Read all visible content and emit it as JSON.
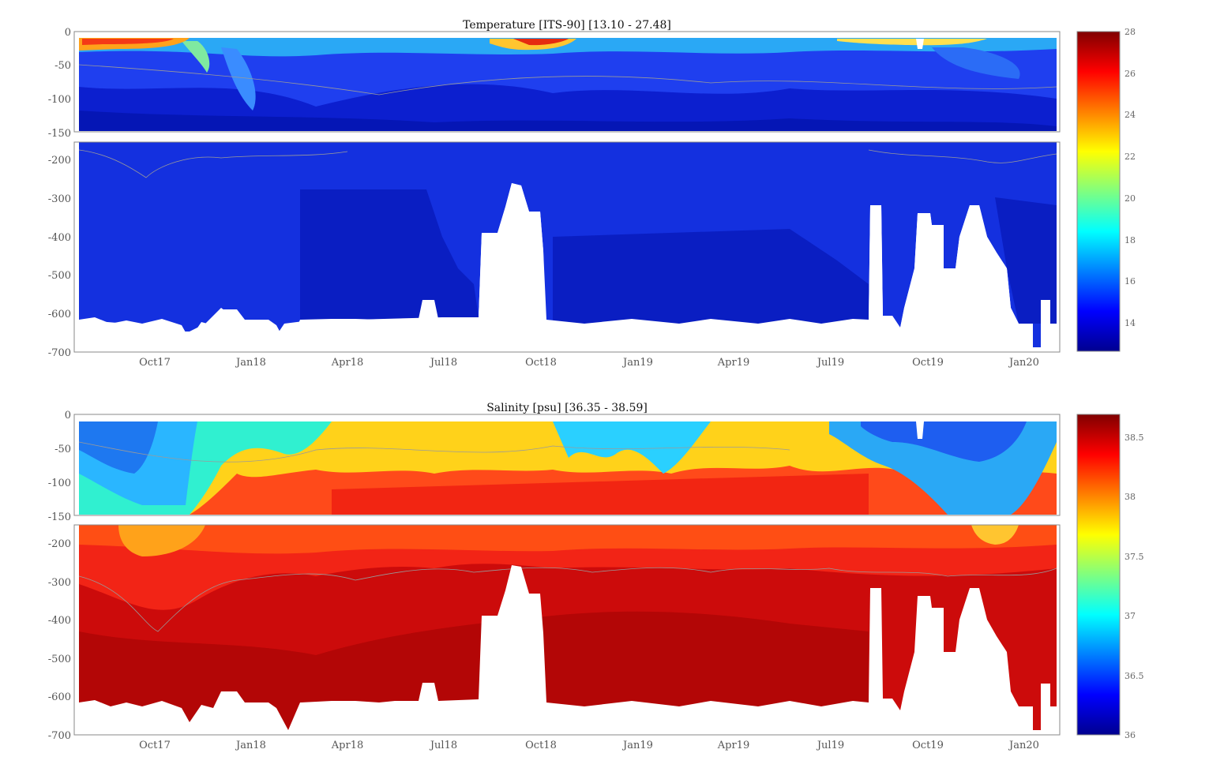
{
  "chart_data": [
    {
      "type": "heatmap",
      "title": "Temperature [ITS-90]   [13.10 - 27.48]",
      "xlabel": "",
      "ylabel": "",
      "x_tick_labels": [
        "Oct17",
        "Jan18",
        "Apr18",
        "Jul18",
        "Oct18",
        "Jan19",
        "Apr19",
        "Jul19",
        "Oct19",
        "Jan20"
      ],
      "y_tick_labels_upper": [
        "0",
        "-50",
        "-100",
        "-150"
      ],
      "y_tick_labels_lower": [
        "-200",
        "-300",
        "-400",
        "-500",
        "-600",
        "-700"
      ],
      "ylim_upper": [
        -150,
        0
      ],
      "ylim_lower": [
        -700,
        -150
      ],
      "colorbar": {
        "min": 12.7,
        "max": 28,
        "ticks": [
          "28",
          "26",
          "24",
          "22",
          "20",
          "18",
          "16",
          "14"
        ],
        "colormap": "jet"
      },
      "data_range": [
        13.1,
        27.48
      ]
    },
    {
      "type": "heatmap",
      "title": "Salinity [psu]   [36.35 - 38.59]",
      "xlabel": "",
      "ylabel": "",
      "x_tick_labels": [
        "Oct17",
        "Jan18",
        "Apr18",
        "Jul18",
        "Oct18",
        "Jan19",
        "Apr19",
        "Jul19",
        "Oct19",
        "Jan20"
      ],
      "y_tick_labels_upper": [
        "0",
        "-50",
        "-100",
        "-150"
      ],
      "y_tick_labels_lower": [
        "-200",
        "-300",
        "-400",
        "-500",
        "-600",
        "-700"
      ],
      "ylim_upper": [
        -150,
        0
      ],
      "ylim_lower": [
        -700,
        -150
      ],
      "colorbar": {
        "min": 36,
        "max": 38.7,
        "ticks": [
          "38.5",
          "38",
          "37.5",
          "37",
          "36.5",
          "36"
        ],
        "colormap": "jet"
      },
      "data_range": [
        36.35,
        38.59
      ]
    }
  ],
  "colors": {
    "axis": "#888888",
    "contour": "#9a9a9a",
    "background": "#ffffff"
  }
}
